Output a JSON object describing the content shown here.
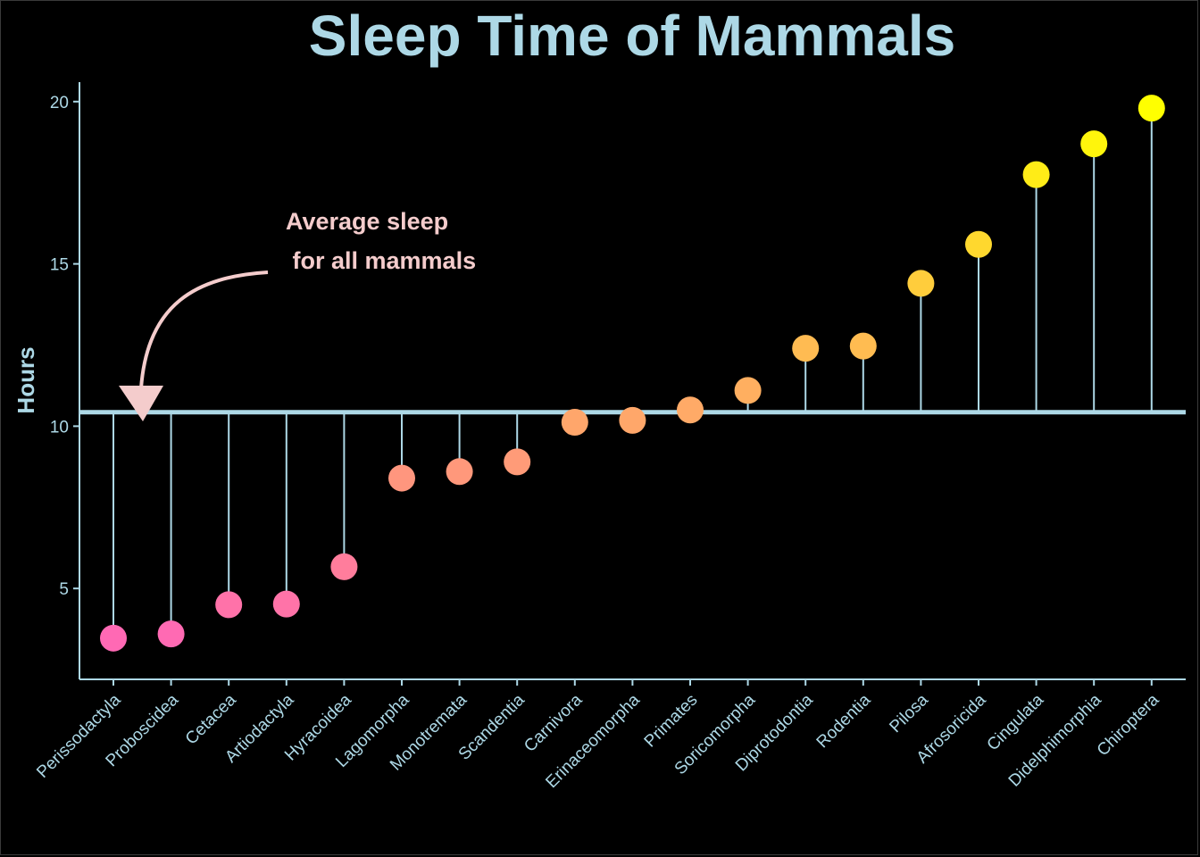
{
  "chart_data": {
    "type": "lollipop",
    "title": "Sleep Time of Mammals",
    "xlabel": "",
    "ylabel": "Hours",
    "ylim": [
      2.2,
      20.6
    ],
    "yticks": [
      5,
      10,
      15,
      20
    ],
    "grid": false,
    "legend": "none",
    "baseline": 10.43,
    "categories": [
      "Perissodactyla",
      "Proboscidea",
      "Cetacea",
      "Artiodactyla",
      "Hyracoidea",
      "Lagomorpha",
      "Monotremata",
      "Scandentia",
      "Carnivora",
      "Erinaceomorpha",
      "Primates",
      "Soricomorpha",
      "Diprotodontia",
      "Rodentia",
      "Pilosa",
      "Afrosoricida",
      "Cingulata",
      "Didelphimorphia",
      "Chiroptera"
    ],
    "values": [
      3.47,
      3.6,
      4.5,
      4.52,
      5.67,
      8.4,
      8.6,
      8.9,
      10.12,
      10.18,
      10.5,
      11.1,
      12.4,
      12.47,
      14.4,
      15.6,
      17.75,
      18.7,
      19.8
    ],
    "annotation": {
      "lines": [
        "Average sleep",
        " for all mammals"
      ]
    }
  },
  "colors": {
    "background": "#000000",
    "axis": "#add8e6",
    "title": "#add8e6",
    "annotation": "#f4cccc",
    "gradient_low": "#ff69b4",
    "gradient_high": "#ffff00"
  }
}
